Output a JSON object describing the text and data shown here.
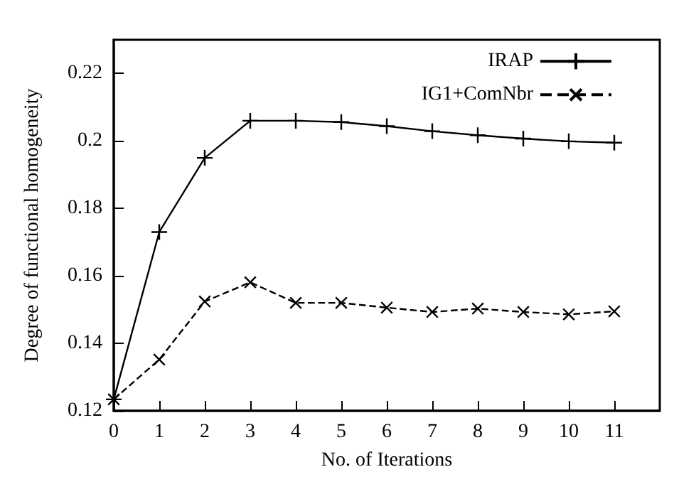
{
  "chart_data": {
    "type": "line",
    "xlabel": "No. of Iterations",
    "ylabel": "Degree of functional homogeneity",
    "x": [
      0,
      1,
      2,
      3,
      4,
      5,
      6,
      7,
      8,
      9,
      10,
      11
    ],
    "series": [
      {
        "name": "IRAP",
        "color": "#000000",
        "line_style": "solid",
        "values": [
          0.1234,
          0.173,
          0.195,
          0.206,
          0.206,
          0.2056,
          0.2044,
          0.2029,
          0.2017,
          0.2007,
          0.1999,
          0.1995
        ]
      },
      {
        "name": "IG1+ComNbr",
        "color": "#000000",
        "line_style": "dashed",
        "values": [
          0.1234,
          0.1352,
          0.1524,
          0.1581,
          0.152,
          0.152,
          0.1506,
          0.1493,
          0.1503,
          0.1493,
          0.1486,
          0.1495
        ]
      }
    ],
    "marker": "cross",
    "xlim": [
      0,
      12
    ],
    "xticks": [
      0,
      1,
      2,
      3,
      4,
      5,
      6,
      7,
      8,
      9,
      10,
      11
    ],
    "ylim": [
      0.12,
      0.23
    ],
    "yticks": [
      0.12,
      0.14,
      0.16,
      0.18,
      0.2,
      0.22
    ],
    "grid": false,
    "legend": "top right"
  }
}
